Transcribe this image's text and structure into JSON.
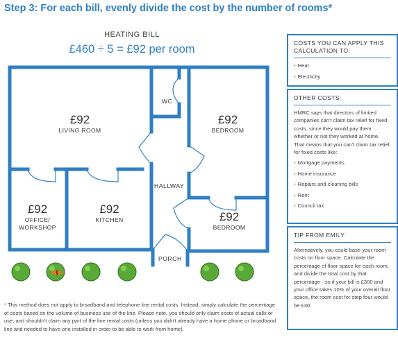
{
  "title": "Step 3: For each bill, evenly divide the cost by the number of rooms*",
  "heating_bill": {
    "label": "HEATING BILL",
    "formula": "£460 ÷ 5 = £92 per room"
  },
  "rooms": {
    "living_room": {
      "amount": "£92",
      "name": "LIVING ROOM"
    },
    "bedroom_1": {
      "amount": "£92",
      "name": "BEDROOM"
    },
    "office": {
      "amount": "£92",
      "name_line1": "OFFICE/",
      "name_line2": "WORKSHOP"
    },
    "kitchen": {
      "amount": "£92",
      "name": "KITCHEN"
    },
    "bedroom_2": {
      "amount": "£92",
      "name": "BEDROOM"
    }
  },
  "areas": {
    "wc": "WC",
    "hallway": "HALLWAY",
    "porch": "PORCH"
  },
  "colors": {
    "accent": "#2f7fc3",
    "bullet": "#7ab648",
    "bush": "#5aa838",
    "butterfly": "#e07a1f"
  },
  "panel_apply": {
    "heading": "COSTS YOU CAN APPLY THIS CALCULATION TO:",
    "items": [
      "Heat",
      "Electricity"
    ]
  },
  "panel_other": {
    "heading": "OTHER COSTS:",
    "body": "HMRC says that directors of limited companies can't claim tax relief for fixed costs, since they would pay them whether or not they worked at home. That means that you can't claim tax relief for fixed costs like:",
    "items": [
      "Mortgage payments",
      "Home insurance",
      "Repairs and cleaning bills",
      "Rent",
      "Council tax"
    ]
  },
  "panel_tip": {
    "heading": "TIP FROM EMILY",
    "body": "Alternatively, you could base your room costs on floor space. Calculate the percentage of floor space for each room, and divide the total cost by that percentage - so if your bill is £300 and your office takes 10% of your overall floor space, the room cost for step four would be £30."
  },
  "footnote": {
    "star": "*",
    "text": "This method does not apply to broadband and telephone line rental costs. Instead, simply calculate the percentage of costs based on the volume of business use of the line. Please note, you should only claim costs of actual calls or use, and shouldn't claim any part of the line rental costs (unless you didn't already have a home phone or broadband line and needed to have one installed in order to be able to work from home)."
  }
}
